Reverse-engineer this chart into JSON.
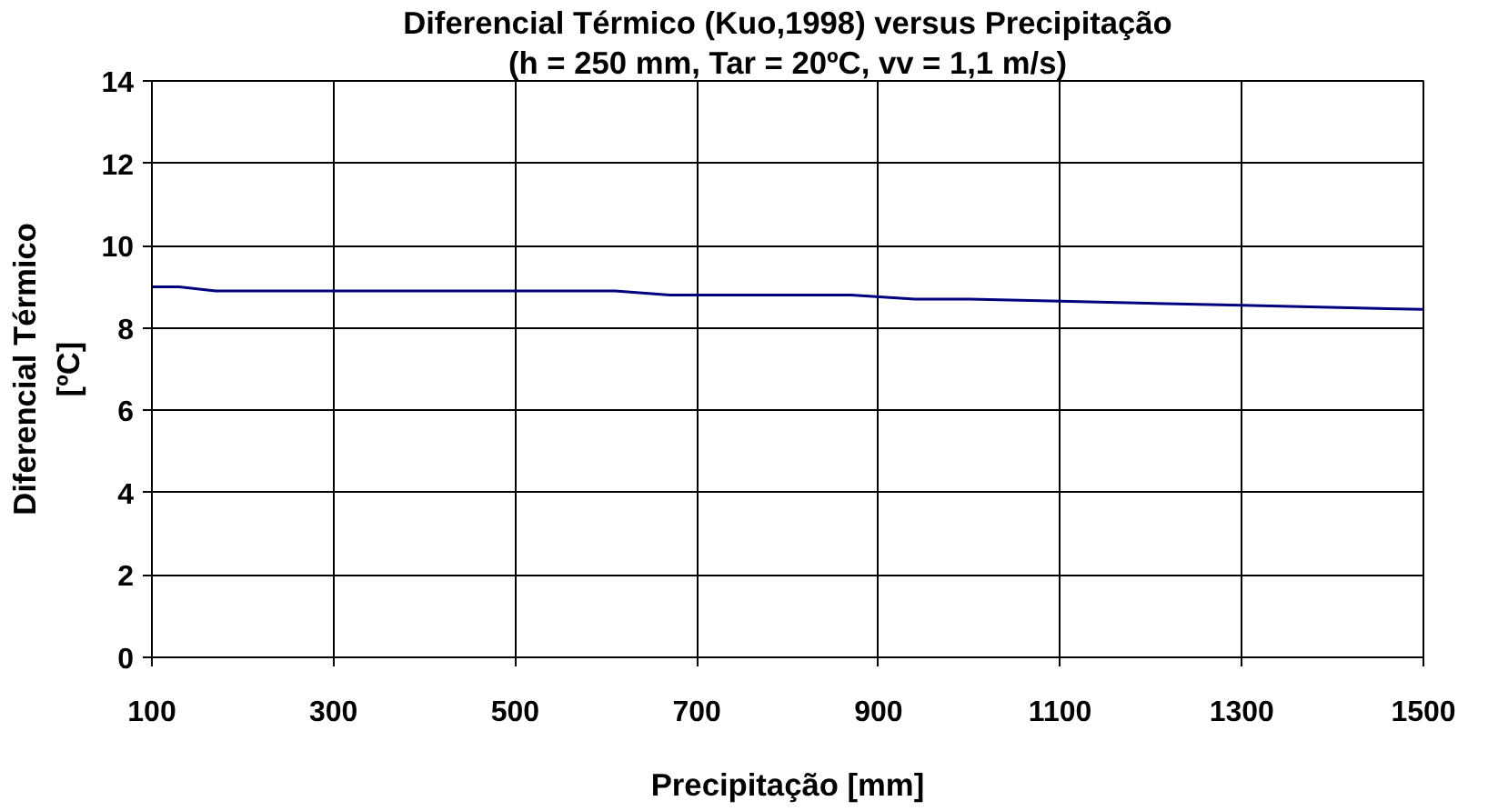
{
  "chart_data": {
    "type": "line",
    "title": "Diferencial Térmico (Kuo,1998) versus Precipitação",
    "subtitle": "(h = 250 mm, Tar = 20ºC, vv = 1,1 m/s)",
    "xlabel": "Precipitação [mm]",
    "ylabel": "Diferencial Térmico\n[ºC]",
    "series": [
      {
        "color": "#000080",
        "x": [
          100,
          130,
          170,
          300,
          500,
          610,
          670,
          800,
          870,
          940,
          1000,
          1100,
          1300,
          1500
        ],
        "values": [
          9.0,
          9.0,
          8.9,
          8.9,
          8.9,
          8.9,
          8.8,
          8.8,
          8.8,
          8.7,
          8.7,
          8.65,
          8.55,
          8.45
        ]
      }
    ],
    "xlim": [
      100,
      1500
    ],
    "xticks": [
      100,
      300,
      500,
      700,
      900,
      1100,
      1300,
      1500
    ],
    "ylim": [
      0,
      14
    ],
    "yticks": [
      0,
      2,
      4,
      6,
      8,
      10,
      12,
      14
    ],
    "grid": true,
    "marker": "none",
    "line_style": "solid"
  }
}
